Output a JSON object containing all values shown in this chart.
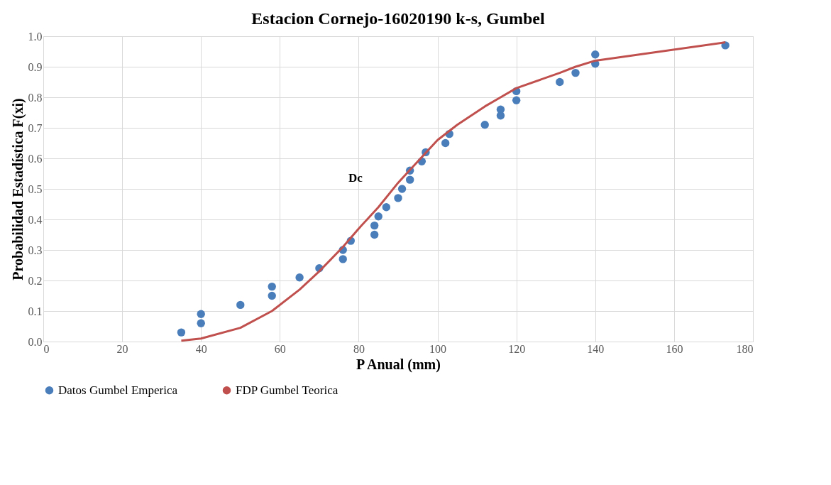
{
  "chart_data": {
    "type": "scatter",
    "title": "Estacion Cornejo-16020190 k-s, Gumbel",
    "xlabel": "P Anual (mm)",
    "ylabel": "Probabilidad  Estadística F(xi)",
    "xlim": [
      0,
      180
    ],
    "xticks": [
      0,
      20,
      40,
      60,
      80,
      100,
      120,
      140,
      160,
      180
    ],
    "ylim": [
      0,
      1
    ],
    "yticks": [
      {
        "value": 0,
        "label": "0.0"
      },
      {
        "value": 0.1,
        "label": "0.1"
      },
      {
        "value": 0.2,
        "label": "0.2"
      },
      {
        "value": 0.3,
        "label": "0.3"
      },
      {
        "value": 0.4,
        "label": "0.4"
      },
      {
        "value": 0.5,
        "label": "0.5"
      },
      {
        "value": 0.6,
        "label": "0.6"
      },
      {
        "value": 0.7,
        "label": "0.7"
      },
      {
        "value": 0.8,
        "label": "0.8"
      },
      {
        "value": 0.9,
        "label": "0.9"
      },
      {
        "value": 1,
        "label": "1.0"
      }
    ],
    "grid": true,
    "legend": "bottom",
    "series": [
      {
        "name": "Datos Gumbel Emperica",
        "type": "scatter",
        "marker": "circle",
        "color": "#4a7ebb",
        "x": [
          35,
          40,
          40,
          50,
          58,
          58,
          65,
          70,
          76,
          76,
          78,
          84,
          84,
          85,
          87,
          90,
          91,
          93,
          93,
          96,
          97,
          102,
          103,
          112,
          116,
          116,
          120,
          120,
          131,
          135,
          140,
          140,
          173
        ],
        "values": [
          0.03,
          0.09,
          0.06,
          0.12,
          0.18,
          0.15,
          0.21,
          0.24,
          0.27,
          0.3,
          0.33,
          0.35,
          0.38,
          0.41,
          0.44,
          0.47,
          0.5,
          0.53,
          0.56,
          0.59,
          0.62,
          0.65,
          0.68,
          0.71,
          0.74,
          0.76,
          0.79,
          0.82,
          0.85,
          0.88,
          0.91,
          0.94,
          0.97
        ]
      },
      {
        "name": "FDP Gumbel Teorica",
        "type": "line",
        "color": "#c0504d",
        "x": [
          35,
          40,
          50,
          58,
          65,
          70,
          76,
          80,
          85,
          90,
          95,
          100,
          105,
          112,
          116,
          120,
          131,
          135,
          140,
          173
        ],
        "values": [
          0.003,
          0.01,
          0.045,
          0.1,
          0.17,
          0.23,
          0.31,
          0.37,
          0.44,
          0.52,
          0.59,
          0.66,
          0.71,
          0.77,
          0.8,
          0.83,
          0.88,
          0.9,
          0.92,
          0.98
        ]
      }
    ],
    "annotations": [
      "Dc"
    ]
  }
}
